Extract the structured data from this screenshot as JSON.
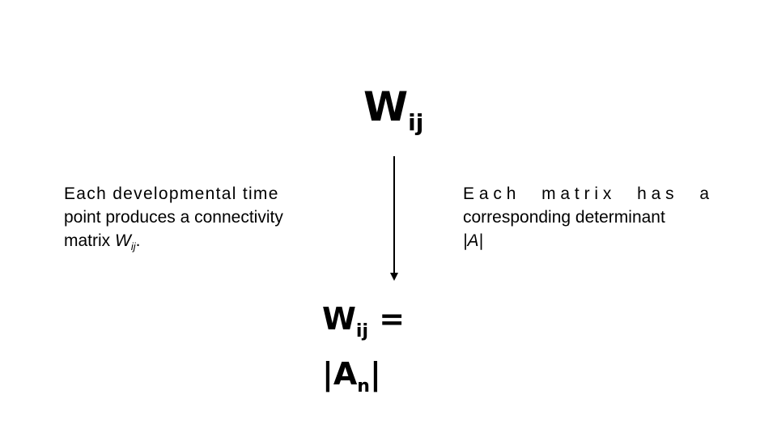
{
  "top_formula": {
    "base": "W",
    "sub": "ij"
  },
  "left_caption": {
    "line1": "Each developmental time",
    "line2": "point produces a connectivity",
    "line3_prefix": "matrix ",
    "var_base": "W",
    "var_sub": "ij",
    "suffix": "."
  },
  "right_caption": {
    "line1_words": [
      "E a c h",
      "m a t r i x",
      "h a s",
      "a"
    ],
    "line2": "corresponding determinant",
    "line3": "|A|"
  },
  "bottom_formula": {
    "line1_base": "W",
    "line1_sub": "ij",
    "line1_rest": " =",
    "line2_open": "|A",
    "line2_sub": "n",
    "line2_close": "|"
  }
}
